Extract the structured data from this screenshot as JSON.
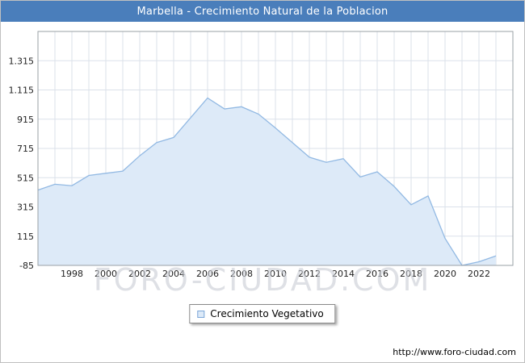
{
  "title_bar": {
    "title": "Marbella - Crecimiento Natural de la Poblacion",
    "bg_color": "#4a7ebb"
  },
  "chart_data": {
    "type": "area",
    "title": "Marbella - Crecimiento Natural de la Poblacion",
    "x": [
      1996,
      1997,
      1998,
      1999,
      2000,
      2001,
      2002,
      2003,
      2004,
      2005,
      2006,
      2007,
      2008,
      2009,
      2010,
      2011,
      2012,
      2013,
      2014,
      2015,
      2016,
      2017,
      2018,
      2019,
      2020,
      2021,
      2022,
      2023
    ],
    "series": [
      {
        "name": "Crecimiento Vegetativo",
        "values": [
          430,
          470,
          460,
          530,
          545,
          560,
          665,
          755,
          790,
          925,
          1060,
          985,
          1000,
          950,
          855,
          755,
          655,
          620,
          645,
          520,
          555,
          455,
          330,
          390,
          100,
          -85,
          -60,
          -20
        ]
      }
    ],
    "ylim": [
      -85,
      1515
    ],
    "yticks": [
      -85,
      115,
      315,
      515,
      715,
      915,
      1115,
      1315
    ],
    "ytick_labels": [
      "-85",
      "115",
      "315",
      "515",
      "715",
      "915",
      "1.115",
      "1.315"
    ],
    "xticks": [
      1998,
      2000,
      2002,
      2004,
      2006,
      2008,
      2010,
      2012,
      2014,
      2016,
      2018,
      2020,
      2022
    ],
    "grid": true,
    "legend_position": "bottom-center",
    "colors": {
      "line": "#92b9e3",
      "fill": "#ddeaf8",
      "grid": "#dbe1ea",
      "axis": "#9aa0a6"
    }
  },
  "legend": {
    "label": "Crecimiento Vegetativo"
  },
  "watermark": "FORO-CIUDAD.COM",
  "footer": {
    "url": "http://www.foro-ciudad.com"
  }
}
